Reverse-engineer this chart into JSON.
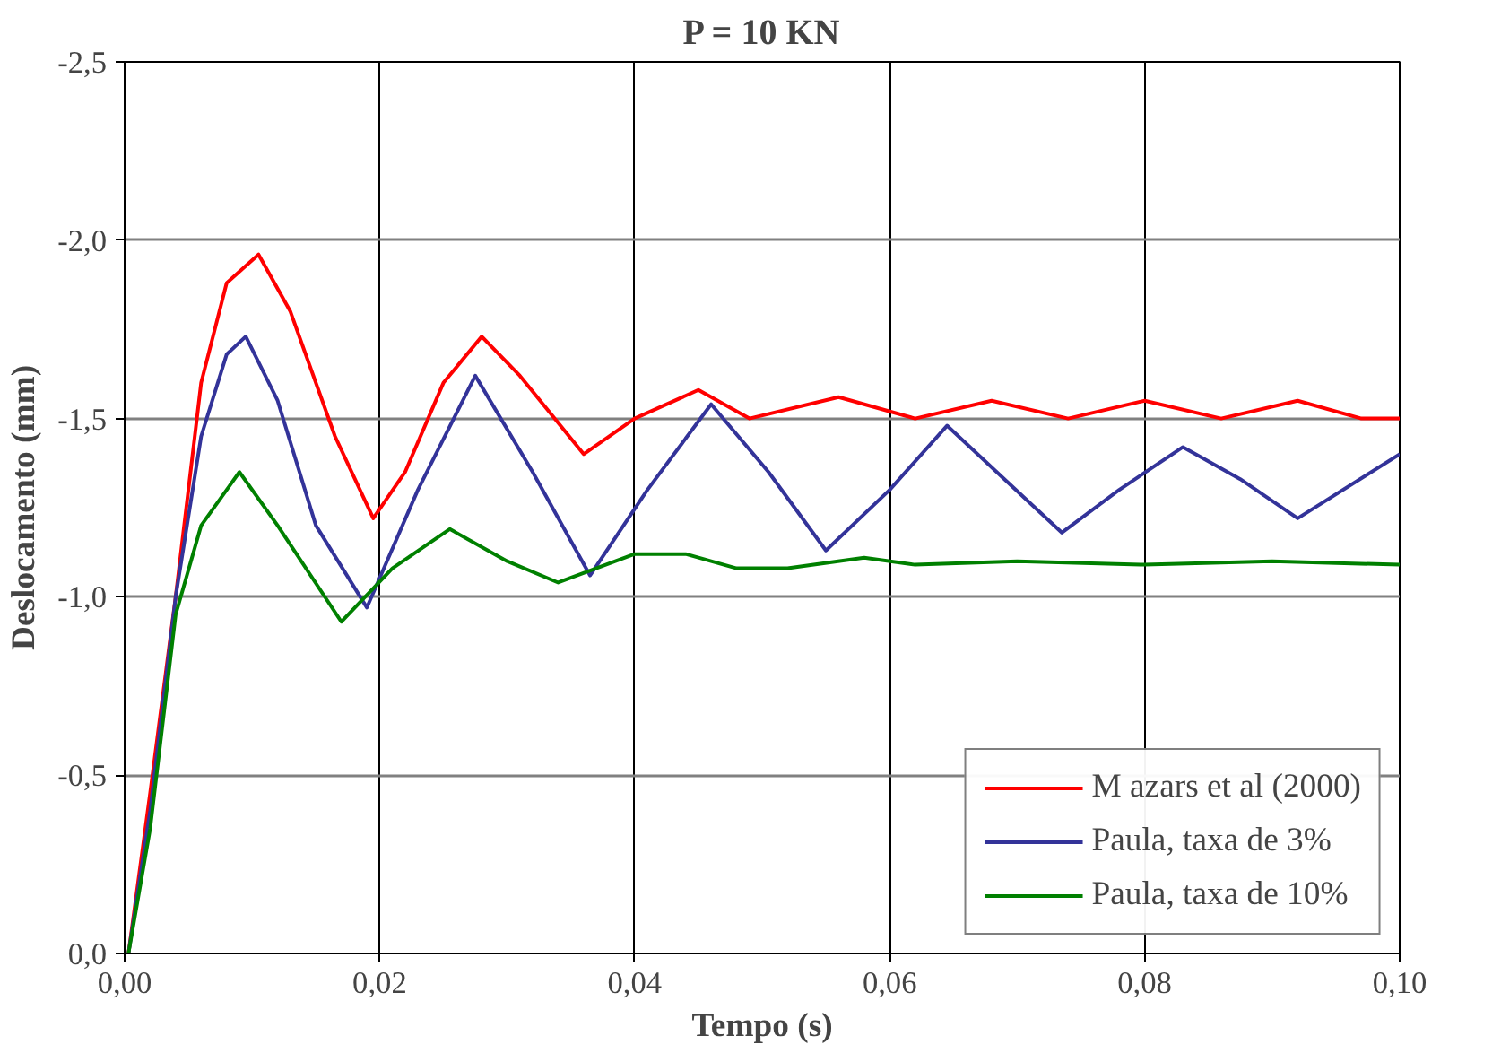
{
  "chart_data": {
    "type": "line",
    "title": "P = 10 KN",
    "xlabel": "Tempo (s)",
    "ylabel": "Deslocamento (mm)",
    "xlim": [
      0,
      0.1
    ],
    "ylim": [
      0,
      -2.5
    ],
    "xticks": [
      {
        "value": 0,
        "label": "0,00"
      },
      {
        "value": 0.02,
        "label": "0,02"
      },
      {
        "value": 0.04,
        "label": "0,04"
      },
      {
        "value": 0.06,
        "label": "0,06"
      },
      {
        "value": 0.08,
        "label": "0,08"
      },
      {
        "value": 0.1,
        "label": "0,10"
      }
    ],
    "yticks": [
      {
        "value": 0,
        "label": "0,0"
      },
      {
        "value": -0.5,
        "label": "-0,5"
      },
      {
        "value": -1,
        "label": "-1,0"
      },
      {
        "value": -1.5,
        "label": "-1,5"
      },
      {
        "value": -2,
        "label": "-2,0"
      },
      {
        "value": -2.5,
        "label": "-2,5"
      }
    ],
    "grid": true,
    "legend": "bottom right",
    "line_style": "solid",
    "marker": "none",
    "series": [
      {
        "name": "M azars et al (2000)",
        "color": "#ff0000",
        "x": [
          0.0003,
          0.002,
          0.004,
          0.006,
          0.008,
          0.0105,
          0.013,
          0.0165,
          0.0195,
          0.022,
          0.025,
          0.028,
          0.031,
          0.036,
          0.04,
          0.045,
          0.049,
          0.056,
          0.062,
          0.068,
          0.074,
          0.08,
          0.086,
          0.092,
          0.097,
          0.1
        ],
        "values": [
          0,
          -0.45,
          -1.0,
          -1.6,
          -1.88,
          -1.96,
          -1.8,
          -1.45,
          -1.22,
          -1.35,
          -1.6,
          -1.73,
          -1.62,
          -1.4,
          -1.5,
          -1.58,
          -1.5,
          -1.56,
          -1.5,
          -1.55,
          -1.5,
          -1.55,
          -1.5,
          -1.55,
          -1.5,
          -1.5
        ]
      },
      {
        "name": "Paula, taxa de 3%",
        "color": "#333399",
        "x": [
          0.0003,
          0.002,
          0.004,
          0.006,
          0.008,
          0.0095,
          0.012,
          0.015,
          0.019,
          0.023,
          0.0275,
          0.032,
          0.0365,
          0.041,
          0.046,
          0.0505,
          0.055,
          0.06,
          0.0645,
          0.069,
          0.0735,
          0.078,
          0.083,
          0.0875,
          0.092,
          0.1
        ],
        "values": [
          0,
          -0.4,
          -1.0,
          -1.45,
          -1.68,
          -1.73,
          -1.55,
          -1.2,
          -0.97,
          -1.3,
          -1.62,
          -1.35,
          -1.06,
          -1.3,
          -1.54,
          -1.35,
          -1.13,
          -1.3,
          -1.48,
          -1.33,
          -1.18,
          -1.3,
          -1.42,
          -1.33,
          -1.22,
          -1.4
        ]
      },
      {
        "name": "Paula, taxa de 10%",
        "color": "#008000",
        "x": [
          0.0003,
          0.002,
          0.004,
          0.006,
          0.009,
          0.012,
          0.017,
          0.021,
          0.0255,
          0.03,
          0.034,
          0.04,
          0.044,
          0.048,
          0.052,
          0.058,
          0.062,
          0.07,
          0.08,
          0.09,
          0.1
        ],
        "values": [
          0,
          -0.35,
          -0.95,
          -1.2,
          -1.35,
          -1.2,
          -0.93,
          -1.08,
          -1.19,
          -1.1,
          -1.04,
          -1.12,
          -1.12,
          -1.08,
          -1.08,
          -1.11,
          -1.09,
          -1.1,
          -1.09,
          -1.1,
          -1.09
        ]
      }
    ]
  }
}
